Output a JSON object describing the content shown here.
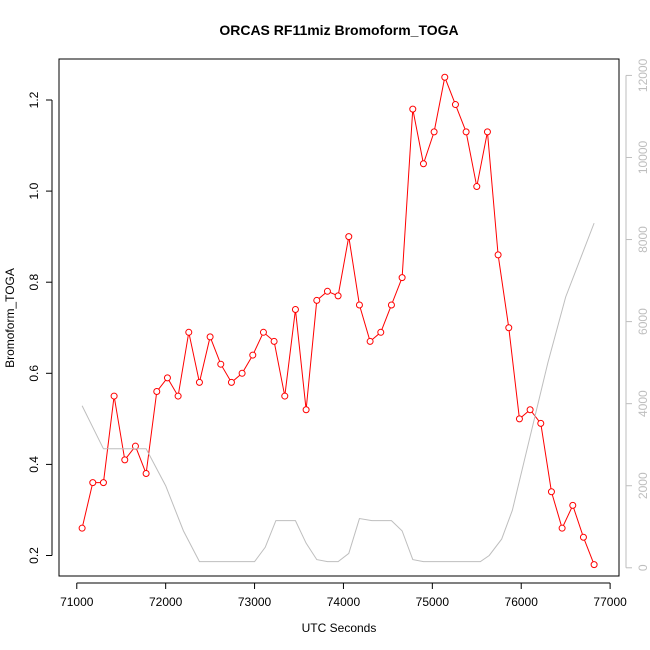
{
  "chart_data": {
    "type": "line",
    "title": "ORCAS RF11miz Bromoform_TOGA",
    "xlabel": "UTC Seconds",
    "ylabel": "Bromoform_TOGA",
    "xlim": [
      70800,
      77100
    ],
    "ylim": [
      0.155,
      1.29
    ],
    "x_ticks": [
      71000,
      72000,
      73000,
      74000,
      75000,
      76000,
      77000
    ],
    "y_ticks": [
      0.2,
      0.4,
      0.6,
      0.8,
      1.0,
      1.2
    ],
    "y2_ticks": [
      0,
      2000,
      4000,
      6000,
      8000,
      10000,
      12000
    ],
    "y2lim": [
      -200,
      12400
    ],
    "grid": false,
    "series": [
      {
        "axis": "left",
        "color": "#ff0000",
        "marker": "open-circle",
        "x": [
          71060,
          71180,
          71300,
          71420,
          71540,
          71660,
          71780,
          71900,
          72020,
          72140,
          72260,
          72380,
          72500,
          72620,
          72740,
          72860,
          72980,
          73100,
          73220,
          73340,
          73460,
          73580,
          73700,
          73820,
          73940,
          74060,
          74180,
          74300,
          74420,
          74540,
          74660,
          74780,
          74900,
          75020,
          75140,
          75260,
          75380,
          75500,
          75620,
          75740,
          75860,
          75980,
          76100,
          76220,
          76340,
          76460,
          76580,
          76700,
          76820
        ],
        "y": [
          0.26,
          0.36,
          0.36,
          0.55,
          0.41,
          0.44,
          0.38,
          0.56,
          0.59,
          0.55,
          0.69,
          0.58,
          0.68,
          0.62,
          0.58,
          0.6,
          0.64,
          0.69,
          0.67,
          0.55,
          0.74,
          0.52,
          0.76,
          0.78,
          0.77,
          0.9,
          0.75,
          0.67,
          0.69,
          0.75,
          0.81,
          1.18,
          1.06,
          1.13,
          1.25,
          1.19,
          1.13,
          1.01,
          1.13,
          0.86,
          0.7,
          0.5,
          0.52,
          0.49,
          0.34,
          0.26,
          0.31,
          0.24,
          0.18
        ]
      },
      {
        "axis": "right",
        "color": "#bebebe",
        "marker": "none",
        "x": [
          71060,
          71300,
          71540,
          71780,
          72000,
          72200,
          72380,
          72600,
          72800,
          73000,
          73120,
          73240,
          73460,
          73580,
          73700,
          73820,
          73940,
          74060,
          74180,
          74320,
          74540,
          74660,
          74780,
          74900,
          75200,
          75540,
          75640,
          75780,
          75900,
          76100,
          76300,
          76500,
          76820
        ],
        "y": [
          3950,
          2900,
          2900,
          2900,
          2000,
          900,
          150,
          150,
          150,
          150,
          500,
          1150,
          1150,
          600,
          200,
          150,
          150,
          350,
          1200,
          1150,
          1150,
          900,
          200,
          150,
          150,
          150,
          300,
          700,
          1400,
          3200,
          5000,
          6600,
          8400
        ]
      }
    ]
  }
}
